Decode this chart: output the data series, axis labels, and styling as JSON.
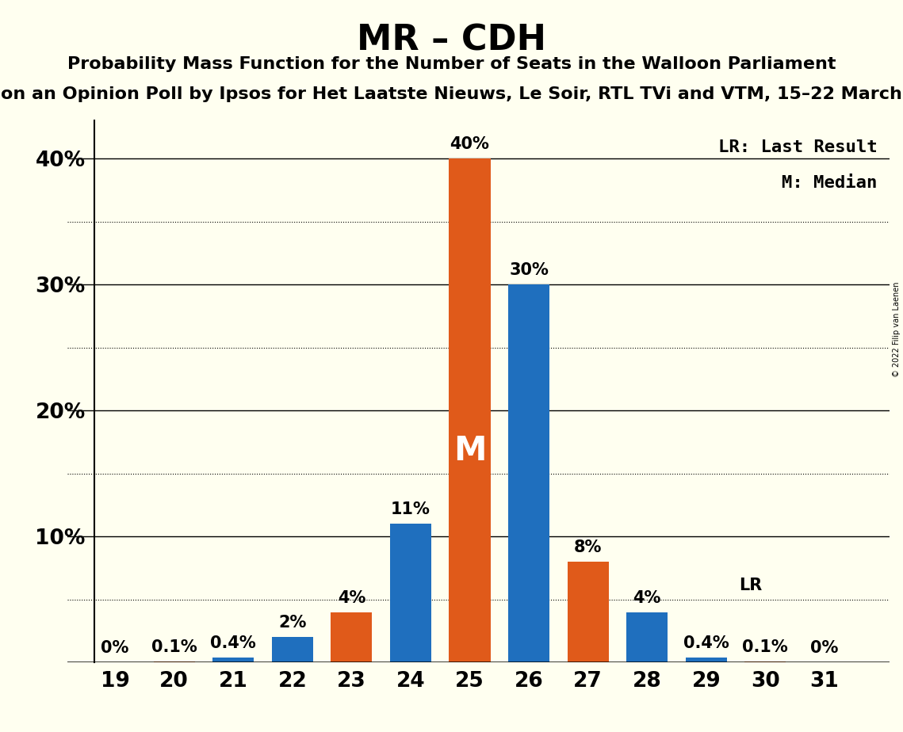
{
  "title": "MR – CDH",
  "subtitle1": "Probability Mass Function for the Number of Seats in the Walloon Parliament",
  "subtitle2": "on an Opinion Poll by Ipsos for Het Laatste Nieuws, Le Soir, RTL TVi and VTM, 15–22 March",
  "copyright": "© 2022 Filip van Laenen",
  "seats": [
    19,
    20,
    21,
    22,
    23,
    24,
    25,
    26,
    27,
    28,
    29,
    30,
    31
  ],
  "values": [
    0.0,
    0.1,
    0.4,
    2.0,
    4.0,
    11.0,
    40.0,
    30.0,
    8.0,
    4.0,
    0.4,
    0.1,
    0.0
  ],
  "colors": [
    "#1f6fbe",
    "#e05a1a",
    "#1f6fbe",
    "#1f6fbe",
    "#e05a1a",
    "#1f6fbe",
    "#e05a1a",
    "#1f6fbe",
    "#e05a1a",
    "#1f6fbe",
    "#1f6fbe",
    "#e05a1a",
    "#1f6fbe"
  ],
  "labels": [
    "0%",
    "0.1%",
    "0.4%",
    "2%",
    "4%",
    "11%",
    "40%",
    "30%",
    "8%",
    "4%",
    "0.4%",
    "0.1%",
    "0%"
  ],
  "pmf_color": "#1f6fbe",
  "lr_color": "#e05a1a",
  "background_color": "#fffff0",
  "median_seat": 25,
  "median_seat_idx": 6,
  "lr_seat_idx": 10,
  "ylim": [
    0,
    43
  ],
  "yticks": [
    0,
    10,
    20,
    30,
    40
  ],
  "ytick_labels": [
    "",
    "10%",
    "20%",
    "30%",
    "40%"
  ],
  "dotted_lines": [
    5.0,
    15.0,
    25.0,
    35.0
  ],
  "solid_lines": [
    10,
    20,
    30,
    40
  ],
  "bar_width": 0.7,
  "lr_legend": "LR: Last Result",
  "median_legend": "M: Median",
  "median_marker": "M",
  "lr_marker": "LR",
  "label_fontsize": 15,
  "tick_fontsize": 19,
  "legend_fontsize": 16,
  "title_fontsize": 32,
  "subtitle_fontsize": 16
}
